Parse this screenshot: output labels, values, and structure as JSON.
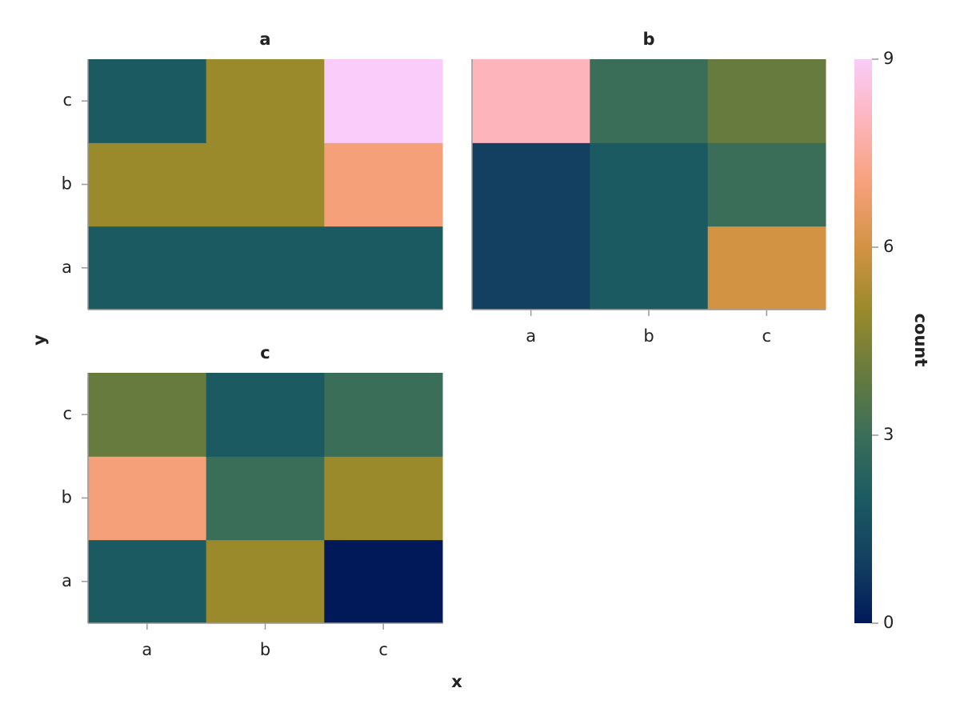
{
  "chart_data": {
    "type": "heatmap",
    "x_label": "x",
    "y_label": "y",
    "x_categories": [
      "a",
      "b",
      "c"
    ],
    "y_categories": [
      "a",
      "b",
      "c"
    ],
    "facets": [
      {
        "title": "a",
        "z": [
          [
            2,
            2,
            2
          ],
          [
            5,
            5,
            7
          ],
          [
            2,
            5,
            9
          ]
        ]
      },
      {
        "title": "b",
        "z": [
          [
            1,
            2,
            6
          ],
          [
            1,
            2,
            3
          ],
          [
            8,
            3,
            4
          ]
        ]
      },
      {
        "title": "c",
        "z": [
          [
            2,
            5,
            0
          ],
          [
            7,
            3,
            5
          ],
          [
            4,
            2,
            3
          ]
        ]
      }
    ],
    "colorbar": {
      "label": "count",
      "clim": [
        0,
        9
      ],
      "ticks": [
        0,
        3,
        6,
        9
      ]
    },
    "colorscale": [
      "#011959",
      "#134060",
      "#1c5a62",
      "#3b6e58",
      "#687b3e",
      "#9a8a2c",
      "#d29343",
      "#f6a07a",
      "#fdb5bb",
      "#f9ccf9"
    ]
  }
}
